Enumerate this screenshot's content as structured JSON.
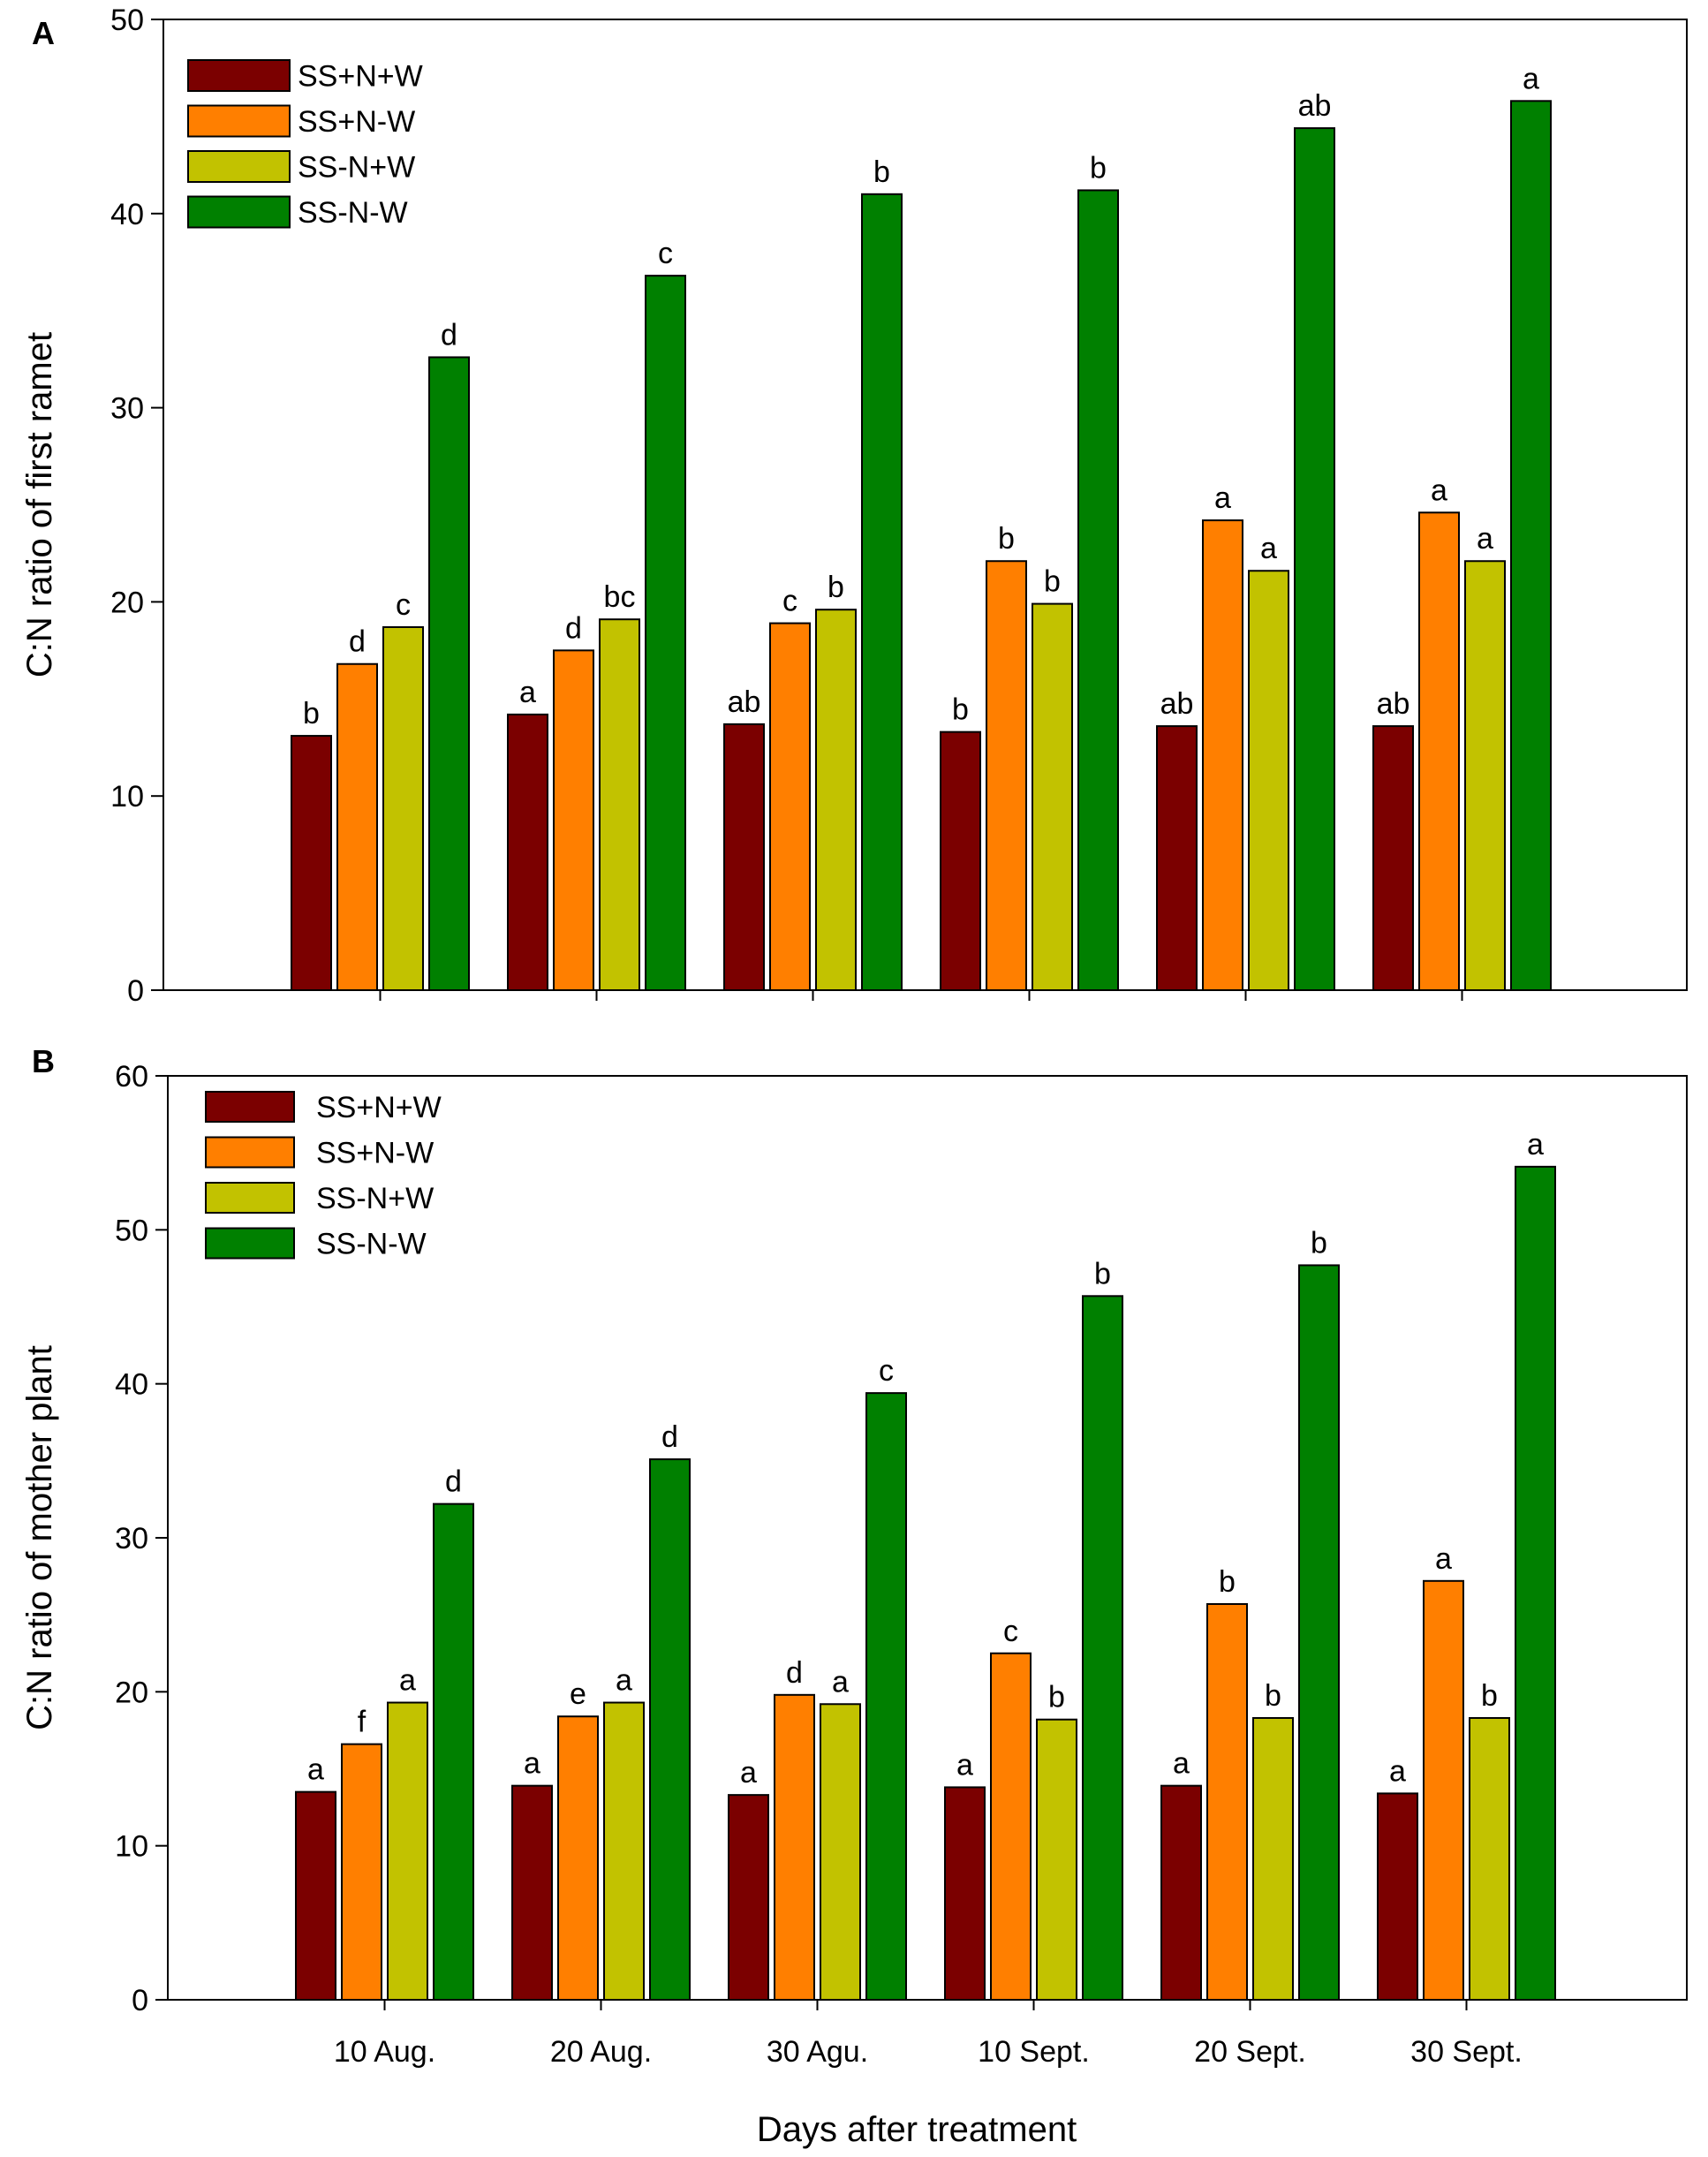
{
  "chart_data": [
    {
      "type": "bar",
      "panel": "A",
      "ylabel": "C:N ratio of first ramet",
      "xlabel": "",
      "ylim": [
        0,
        50
      ],
      "yticks": [
        0,
        10,
        20,
        30,
        40,
        50
      ],
      "grid": false,
      "legend_position": "top-left",
      "categories": [
        "10 Aug.",
        "20 Aug.",
        "30 Agu.",
        "10 Sept.",
        "20 Sept.",
        "30 Sept."
      ],
      "series": [
        {
          "name": "SS+N+W",
          "color": "#7B0000",
          "values": [
            13.1,
            14.2,
            13.7,
            13.3,
            13.6,
            13.6
          ],
          "labels": [
            "b",
            "a",
            "ab",
            "b",
            "ab",
            "ab"
          ]
        },
        {
          "name": "SS+N-W",
          "color": "#FF7F00",
          "values": [
            16.8,
            17.5,
            18.9,
            22.1,
            24.2,
            24.6
          ],
          "labels": [
            "d",
            "d",
            "c",
            "b",
            "a",
            "a"
          ]
        },
        {
          "name": "SS-N+W",
          "color": "#C2C200",
          "values": [
            18.7,
            19.1,
            19.6,
            19.9,
            21.6,
            22.1
          ],
          "labels": [
            "c",
            "bc",
            "b",
            "b",
            "a",
            "a"
          ]
        },
        {
          "name": "SS-N-W",
          "color": "#008000",
          "values": [
            32.6,
            36.8,
            41.0,
            41.2,
            44.4,
            45.8
          ],
          "labels": [
            "d",
            "c",
            "b",
            "b",
            "ab",
            "a"
          ]
        }
      ]
    },
    {
      "type": "bar",
      "panel": "B",
      "ylabel": "C:N ratio of mother plant",
      "xlabel": "Days after treatment",
      "ylim": [
        0,
        60
      ],
      "yticks": [
        0,
        10,
        20,
        30,
        40,
        50,
        60
      ],
      "grid": false,
      "legend_position": "top-left",
      "categories": [
        "10 Aug.",
        "20 Aug.",
        "30 Agu.",
        "10 Sept.",
        "20 Sept.",
        "30 Sept."
      ],
      "series": [
        {
          "name": "SS+N+W",
          "color": "#7B0000",
          "values": [
            13.5,
            13.9,
            13.3,
            13.8,
            13.9,
            13.4
          ],
          "labels": [
            "a",
            "a",
            "a",
            "a",
            "a",
            "a"
          ]
        },
        {
          "name": "SS+N-W",
          "color": "#FF7F00",
          "values": [
            16.6,
            18.4,
            19.8,
            22.5,
            25.7,
            27.2
          ],
          "labels": [
            "f",
            "e",
            "d",
            "c",
            "b",
            "a"
          ]
        },
        {
          "name": "SS-N+W",
          "color": "#C2C200",
          "values": [
            19.3,
            19.3,
            19.2,
            18.2,
            18.3,
            18.3
          ],
          "labels": [
            "a",
            "a",
            "a",
            "b",
            "b",
            "b"
          ]
        },
        {
          "name": "SS-N-W",
          "color": "#008000",
          "values": [
            32.2,
            35.1,
            39.4,
            45.7,
            47.7,
            54.1
          ],
          "labels": [
            "d",
            "d",
            "c",
            "b",
            "b",
            "a"
          ]
        }
      ]
    }
  ]
}
